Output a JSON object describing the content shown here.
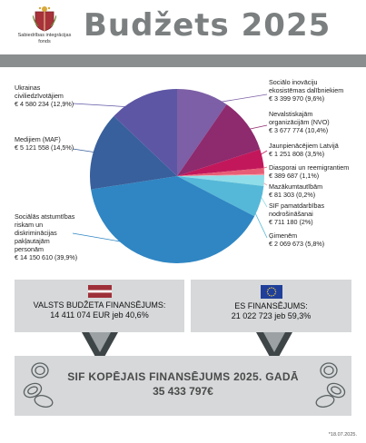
{
  "header": {
    "title": "Budžets 2025",
    "logo_text_1": "Sabiedrības integrācijas",
    "logo_text_2": "fonds"
  },
  "chart_data": {
    "type": "pie",
    "slices": [
      {
        "name_lines": [
          "Sociālo inovāciju",
          "ekosistēmas dalībniekiem"
        ],
        "amount": "€ 3 399 970 (9,6%)",
        "value": 9.6,
        "color": "#7c5fa6"
      },
      {
        "name_lines": [
          "Nevalstiskajām",
          "organizācijām (NVO)"
        ],
        "amount": "€ 3 677 774 (10,4%)",
        "value": 10.4,
        "color": "#8e2a6e"
      },
      {
        "name_lines": [
          "Jaunpienācējiem Latvijā"
        ],
        "amount": "€ 1 251 808 (3,5%)",
        "value": 3.5,
        "color": "#c2185b"
      },
      {
        "name_lines": [
          "Diasporai un reemigrantiem"
        ],
        "amount": "€ 389 687 (1,1%)",
        "value": 1.1,
        "color": "#e85d75"
      },
      {
        "name_lines": [
          "Mazākumtautībām"
        ],
        "amount": "€ 81 303 (0,2%)",
        "value": 0.2,
        "color": "#f0a0a8"
      },
      {
        "name_lines": [
          "SIF pamatdarbības",
          "nodrošināšanai"
        ],
        "amount": "€ 711 180 (2%)",
        "value": 2.0,
        "color": "#8fdde8"
      },
      {
        "name_lines": [
          "Ģimenēm"
        ],
        "amount": "€ 2 069 673 (5,8%)",
        "value": 5.8,
        "color": "#56b8d8"
      },
      {
        "name_lines": [
          "Sociālās atstumtības",
          "riskam un",
          "diskriminācijas",
          "pakļautajām",
          "personām"
        ],
        "amount": "€ 14 150 610 (39,9%)",
        "value": 39.9,
        "color": "#2f86c3"
      },
      {
        "name_lines": [
          "Medijiem (MAF)"
        ],
        "amount": "€ 5 121 558 (14,5%)",
        "value": 14.5,
        "color": "#38609c"
      },
      {
        "name_lines": [
          "Ukrainas",
          "civiliedzīvotājiem"
        ],
        "amount": "€ 4 580 234 (12,9%)",
        "value": 12.9,
        "color": "#5d56a4"
      }
    ]
  },
  "funding": {
    "lv_line1": "VALSTS BUDŽETA FINANSĒJUMS:",
    "lv_line2": "14 411 074 EUR jeb 40,6%",
    "eu_line1": "ES FINANSĒJUMS:",
    "eu_line2": "21 022 723 jeb 59,3%",
    "total_line1": "SIF KOPĒJAIS FINANSĒJUMS 2025. GADĀ",
    "total_line2": "35 433 797€",
    "date": "*18.07.2025."
  }
}
